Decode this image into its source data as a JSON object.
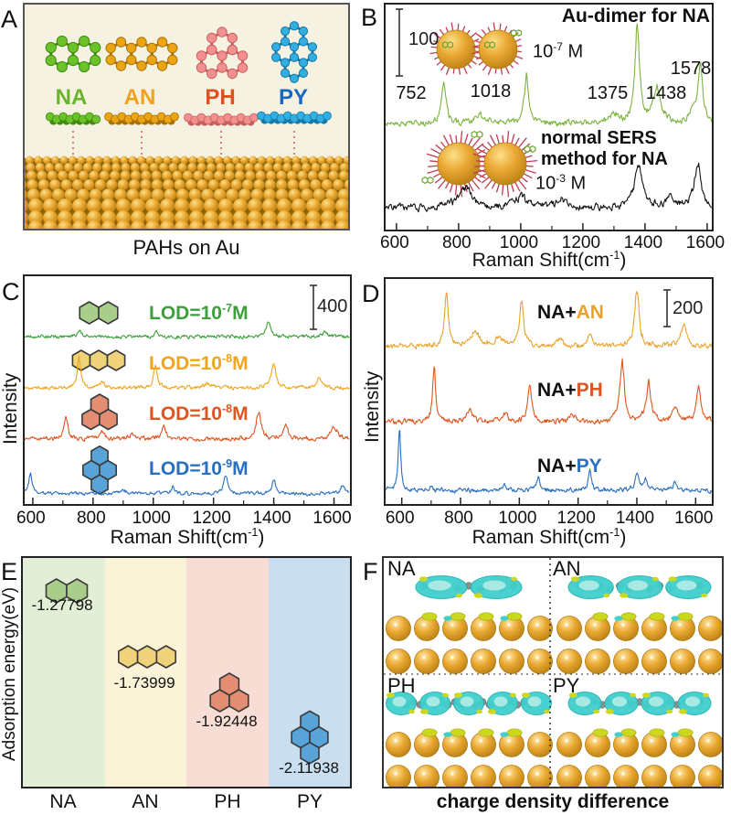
{
  "panelA": {
    "label": "A",
    "caption": "PAHs on Au",
    "bg": "#f6f2e2",
    "molecules": [
      {
        "name": "NA",
        "type": "na",
        "ball": "#6cc229",
        "dark": "#3f8c12",
        "label_color": "#6ab32e"
      },
      {
        "name": "AN",
        "type": "an",
        "ball": "#eaa414",
        "dark": "#a8720a",
        "label_color": "#f0a21e"
      },
      {
        "name": "PH",
        "type": "ph",
        "ball": "#f29090",
        "dark": "#c85f5f",
        "label_color": "#e0511e"
      },
      {
        "name": "PY",
        "type": "py",
        "ball": "#32aee0",
        "dark": "#1679a8",
        "label_color": "#1668c0"
      }
    ]
  },
  "panelB": {
    "label": "B",
    "scale_bar_label": "100",
    "title": "Au-dimer for NA",
    "conc_top": {
      "base": "10",
      "exp": "-7",
      "unit": " M"
    },
    "method_line1": "normal SERS",
    "method_line2": "method for NA",
    "conc_bottom": {
      "base": "10",
      "exp": "-3",
      "unit": " M"
    },
    "peak_labels": [
      "752",
      "1018",
      "1375",
      "1438",
      "1578"
    ],
    "xaxis": {
      "ticks": [
        "600",
        "800",
        "1000",
        "1200",
        "1400",
        "1600"
      ],
      "title_base": "Raman Shift(cm",
      "title_exp": "-1",
      "title_close": ")"
    }
  },
  "panelC": {
    "label": "C",
    "ylabel": "Intensity",
    "scale_bar_label": "400",
    "rows": [
      {
        "mol": "na",
        "fill": "#a9cd8a",
        "lod_base": "LOD=10",
        "lod_exp": "-7",
        "lod_unit": "M",
        "color": "#3da03c"
      },
      {
        "mol": "an",
        "fill": "#f0d27a",
        "lod_base": "LOD=10",
        "lod_exp": "-8",
        "lod_unit": "M",
        "color": "#f0a51c"
      },
      {
        "mol": "ph",
        "fill": "#e38d72",
        "lod_base": "LOD=10",
        "lod_exp": "-8",
        "lod_unit": "M",
        "color": "#e0551e"
      },
      {
        "mol": "py",
        "fill": "#58a4d8",
        "lod_base": "LOD=10",
        "lod_exp": "-9",
        "lod_unit": "M",
        "color": "#2a6fc0"
      }
    ],
    "xaxis": {
      "ticks": [
        "600",
        "800",
        "1000",
        "1200",
        "1400",
        "1600"
      ],
      "title_base": "Raman Shift(cm",
      "title_exp": "-1",
      "title_close": ")"
    }
  },
  "panelD": {
    "label": "D",
    "ylabel": "Intensity",
    "scale_bar_label": "200",
    "rows": [
      {
        "prefix": "NA+",
        "suffix": "AN",
        "color": "#eaa32a"
      },
      {
        "prefix": "NA+",
        "suffix": "PH",
        "color": "#e0551e"
      },
      {
        "prefix": "NA+",
        "suffix": "PY",
        "color": "#2a6fc0"
      }
    ],
    "xaxis": {
      "ticks": [
        "600",
        "800",
        "1000",
        "1200",
        "1400",
        "1600"
      ],
      "title_base": "Raman Shift(cm",
      "title_exp": "-1",
      "title_close": ")"
    }
  },
  "panelE": {
    "label": "E",
    "ylabel": "Adsorption energy(eV)",
    "items": [
      {
        "name": "NA",
        "value": "-1.27798",
        "band": "#e2eed6",
        "mol": "na",
        "fill": "#a9cd8a"
      },
      {
        "name": "AN",
        "value": "-1.73999",
        "band": "#faf3d8",
        "mol": "an",
        "fill": "#f0d27a"
      },
      {
        "name": "PH",
        "value": "-1.92448",
        "band": "#f8ddd5",
        "mol": "ph",
        "fill": "#e38d72"
      },
      {
        "name": "PY",
        "value": "-2.11938",
        "band": "#c9dff0",
        "mol": "py",
        "fill": "#58a4d8"
      }
    ]
  },
  "panelF": {
    "label": "F",
    "caption": "charge density difference",
    "quadrants": [
      {
        "label": "NA",
        "mol": "na"
      },
      {
        "label": "AN",
        "mol": "an"
      },
      {
        "label": "PH",
        "mol": "ph"
      },
      {
        "label": "PY",
        "mol": "py"
      }
    ],
    "colors": {
      "cyan": "#3fcfcd",
      "cyan_light": "#a8e9e3",
      "yellow": "#ccd81e",
      "gray": "#8d8d8d",
      "gold": "#e8a93c"
    }
  },
  "chart_data": [
    {
      "id": "B",
      "type": "line",
      "title": "Au-dimer vs normal SERS method for NA",
      "xlabel": "Raman Shift(cm-1)",
      "xlim": [
        565,
        1615
      ],
      "xticks": [
        600,
        800,
        1000,
        1200,
        1400,
        1600
      ],
      "scale_bar_value": 100,
      "legend_position": "inline",
      "series": [
        {
          "name": "Au-dimer for NA, 1e-7 M",
          "color": "#7cb43e",
          "baseline_frac": 0.53,
          "noise": 5.5,
          "seed": 11,
          "peaks": [
            [
              752,
              45,
              8
            ],
            [
              870,
              9,
              18
            ],
            [
              1018,
              48,
              8
            ],
            [
              1300,
              10,
              14
            ],
            [
              1375,
              100,
              9
            ],
            [
              1438,
              34,
              16
            ],
            [
              1550,
              12,
              10
            ],
            [
              1578,
              62,
              9
            ]
          ]
        },
        {
          "name": "normal SERS method for NA, 1e-3 M",
          "color": "#141414",
          "baseline_frac": 0.905,
          "noise": 6.5,
          "seed": 22,
          "peaks": [
            [
              820,
              20,
              28
            ],
            [
              1000,
              12,
              22
            ],
            [
              1130,
              10,
              20
            ],
            [
              1380,
              44,
              16
            ],
            [
              1480,
              12,
              14
            ],
            [
              1570,
              46,
              13
            ]
          ]
        }
      ]
    },
    {
      "id": "C",
      "type": "line",
      "title": "SERS LOD spectra of four PAHs",
      "xlabel": "Raman Shift(cm-1)",
      "ylabel": "Intensity",
      "xlim": [
        573,
        1653
      ],
      "xticks": [
        600,
        800,
        1000,
        1200,
        1400,
        1600
      ],
      "scale_bar_value": 400,
      "series": [
        {
          "name": "NA, LOD=1e-7 M",
          "color": "#3da03c",
          "baseline_frac": 0.265,
          "noise": 3.2,
          "seed": 33,
          "peaks": [
            [
              755,
              6,
              8
            ],
            [
              1010,
              6,
              7
            ],
            [
              1383,
              16,
              9
            ],
            [
              1570,
              5,
              9
            ]
          ]
        },
        {
          "name": "AN, LOD=1e-8 M",
          "color": "#f0a51c",
          "baseline_frac": 0.49,
          "noise": 3.4,
          "seed": 44,
          "peaks": [
            [
              753,
              30,
              7
            ],
            [
              830,
              5,
              10
            ],
            [
              1007,
              21,
              7
            ],
            [
              1180,
              5,
              12
            ],
            [
              1400,
              25,
              9
            ],
            [
              1550,
              9,
              11
            ]
          ]
        },
        {
          "name": "PH, LOD=1e-8 M",
          "color": "#e0551e",
          "baseline_frac": 0.715,
          "noise": 3.8,
          "seed": 55,
          "peaks": [
            [
              710,
              24,
              7
            ],
            [
              830,
              7,
              10
            ],
            [
              930,
              5,
              12
            ],
            [
              1035,
              15,
              8
            ],
            [
              1350,
              30,
              9
            ],
            [
              1440,
              13,
              9
            ],
            [
              1600,
              13,
              12
            ]
          ]
        },
        {
          "name": "PY, LOD=1e-9 M",
          "color": "#2a6fc0",
          "baseline_frac": 0.955,
          "noise": 3.0,
          "seed": 66,
          "peaks": [
            [
              592,
              22,
              6
            ],
            [
              900,
              4,
              10
            ],
            [
              1065,
              7,
              8
            ],
            [
              1240,
              18,
              8
            ],
            [
              1400,
              15,
              7
            ],
            [
              1630,
              9,
              9
            ]
          ]
        }
      ]
    },
    {
      "id": "D",
      "type": "line",
      "title": "SERS spectra of binary PAH mixtures",
      "xlabel": "Raman Shift(cm-1)",
      "ylabel": "Intensity",
      "xlim": [
        545,
        1655
      ],
      "xticks": [
        600,
        800,
        1000,
        1200,
        1400,
        1600
      ],
      "scale_bar_value": 200,
      "series": [
        {
          "name": "NA+AN",
          "color": "#eaa32a",
          "baseline_frac": 0.3,
          "noise": 4.6,
          "seed": 77,
          "peaks": [
            [
              752,
              60,
              7
            ],
            [
              850,
              16,
              16
            ],
            [
              930,
              10,
              14
            ],
            [
              1008,
              48,
              8
            ],
            [
              1140,
              8,
              12
            ],
            [
              1240,
              12,
              11
            ],
            [
              1400,
              60,
              9
            ],
            [
              1560,
              22,
              13
            ]
          ]
        },
        {
          "name": "NA+PH",
          "color": "#e0551e",
          "baseline_frac": 0.635,
          "noise": 4.6,
          "seed": 88,
          "peaks": [
            [
              710,
              57,
              6
            ],
            [
              830,
              12,
              11
            ],
            [
              950,
              8,
              12
            ],
            [
              1035,
              38,
              8
            ],
            [
              1180,
              8,
              10
            ],
            [
              1350,
              62,
              9
            ],
            [
              1440,
              40,
              9
            ],
            [
              1530,
              16,
              11
            ],
            [
              1610,
              35,
              9
            ]
          ]
        },
        {
          "name": "NA+PY",
          "color": "#2a6fc0",
          "baseline_frac": 0.94,
          "noise": 4.0,
          "seed": 99,
          "peaks": [
            [
              592,
              66,
              5
            ],
            [
              700,
              5,
              8
            ],
            [
              950,
              6,
              9
            ],
            [
              1065,
              15,
              7
            ],
            [
              1240,
              21,
              7
            ],
            [
              1400,
              17,
              8
            ],
            [
              1430,
              12,
              6
            ],
            [
              1530,
              9,
              9
            ]
          ]
        }
      ]
    },
    {
      "id": "E",
      "type": "scatter",
      "categories": [
        "NA",
        "AN",
        "PH",
        "PY"
      ],
      "values": [
        -1.27798,
        -1.73999,
        -1.92448,
        -2.11938
      ],
      "ylabel": "Adsorption energy(eV)",
      "band_colors": [
        "#e2eed6",
        "#faf3d8",
        "#f8ddd5",
        "#c9dff0"
      ]
    }
  ]
}
